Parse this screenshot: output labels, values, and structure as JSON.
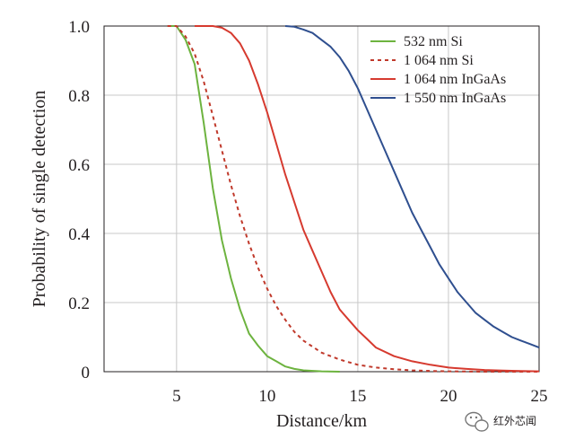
{
  "chart_data": {
    "type": "line",
    "title": "",
    "xlabel": "Distance/km",
    "ylabel": "Probability of single detection",
    "xlim": [
      0,
      25
    ],
    "ylim": [
      0,
      1.0
    ],
    "x_visible_start": 1,
    "x_ticks": [
      5,
      10,
      15,
      20,
      25
    ],
    "x_tick_labels": [
      "5",
      "10",
      "15",
      "20",
      "25"
    ],
    "y_ticks": [
      0,
      0.2,
      0.4,
      0.6,
      0.8,
      1.0
    ],
    "y_tick_labels": [
      "0",
      "0.2",
      "0.4",
      "0.6",
      "0.8",
      "1.0"
    ],
    "grid": true,
    "legend_position": "top-right",
    "series": [
      {
        "name": "532 nm Si",
        "color": "#6db33f",
        "dash": "solid",
        "x": [
          4.5,
          5.0,
          5.5,
          6.0,
          6.5,
          7.0,
          7.5,
          8.0,
          8.5,
          9.0,
          9.5,
          10.0,
          10.5,
          11.0,
          11.5,
          12.0,
          13.0,
          14.0
        ],
        "y": [
          1.0,
          1.0,
          0.96,
          0.89,
          0.72,
          0.53,
          0.38,
          0.27,
          0.18,
          0.11,
          0.075,
          0.045,
          0.03,
          0.015,
          0.008,
          0.004,
          0.001,
          0.0
        ]
      },
      {
        "name": "1 064 nm Si",
        "color": "#c0392b",
        "dash": "dashed",
        "x": [
          4.5,
          5.0,
          5.5,
          6.0,
          6.5,
          7.0,
          7.5,
          8.0,
          8.5,
          9.0,
          9.5,
          10.0,
          10.5,
          11.0,
          11.5,
          12.0,
          13.0,
          14.0,
          15.0,
          16.0,
          17.0,
          18.0,
          19.0,
          20.0,
          22.0,
          25.0
        ],
        "y": [
          1.0,
          1.0,
          0.97,
          0.92,
          0.84,
          0.74,
          0.64,
          0.54,
          0.45,
          0.37,
          0.3,
          0.24,
          0.19,
          0.15,
          0.115,
          0.09,
          0.055,
          0.035,
          0.02,
          0.012,
          0.007,
          0.004,
          0.002,
          0.001,
          0.0,
          0.0
        ]
      },
      {
        "name": "1 064 nm InGaAs",
        "color": "#d63a2f",
        "dash": "solid",
        "x": [
          6.0,
          7.0,
          7.5,
          8.0,
          8.5,
          9.0,
          9.5,
          10.0,
          10.5,
          11.0,
          11.5,
          12.0,
          12.5,
          13.0,
          13.5,
          14.0,
          14.5,
          15.0,
          15.5,
          16.0,
          17.0,
          18.0,
          19.0,
          20.0,
          21.0,
          22.0,
          23.0,
          24.0,
          25.0
        ],
        "y": [
          1.0,
          1.0,
          0.995,
          0.98,
          0.95,
          0.9,
          0.83,
          0.75,
          0.66,
          0.57,
          0.49,
          0.41,
          0.35,
          0.29,
          0.23,
          0.18,
          0.15,
          0.12,
          0.095,
          0.07,
          0.045,
          0.03,
          0.02,
          0.012,
          0.008,
          0.005,
          0.003,
          0.002,
          0.001
        ]
      },
      {
        "name": "1 550 nm InGaAs",
        "color": "#2f4f8f",
        "dash": "solid",
        "x": [
          11.0,
          11.5,
          12.0,
          12.5,
          13.0,
          13.5,
          14.0,
          14.5,
          15.0,
          15.5,
          16.0,
          16.5,
          17.0,
          17.5,
          18.0,
          18.5,
          19.0,
          19.5,
          20.0,
          20.5,
          21.0,
          21.5,
          22.0,
          22.5,
          23.0,
          23.5,
          24.0,
          24.5,
          25.0
        ],
        "y": [
          1.0,
          0.998,
          0.99,
          0.98,
          0.96,
          0.94,
          0.91,
          0.87,
          0.82,
          0.76,
          0.7,
          0.64,
          0.58,
          0.52,
          0.46,
          0.41,
          0.36,
          0.31,
          0.27,
          0.23,
          0.2,
          0.17,
          0.15,
          0.13,
          0.115,
          0.1,
          0.09,
          0.08,
          0.07
        ]
      }
    ]
  },
  "watermark": {
    "text": "红外芯闻",
    "icon": "wechat-icon"
  }
}
